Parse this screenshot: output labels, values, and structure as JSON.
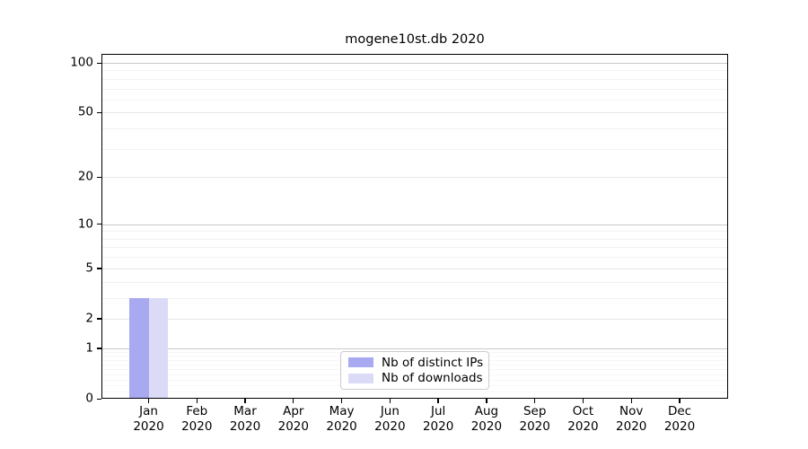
{
  "figure": {
    "title": "mogene10st.db 2020"
  },
  "chart_data": {
    "type": "bar",
    "title": "mogene10st.db 2020",
    "categories": [
      "Jan 2020",
      "Feb 2020",
      "Mar 2020",
      "Apr 2020",
      "May 2020",
      "Jun 2020",
      "Jul 2020",
      "Aug 2020",
      "Sep 2020",
      "Oct 2020",
      "Nov 2020",
      "Dec 2020"
    ],
    "months": [
      "Jan",
      "Feb",
      "Mar",
      "Apr",
      "May",
      "Jun",
      "Jul",
      "Aug",
      "Sep",
      "Oct",
      "Nov",
      "Dec"
    ],
    "year": "2020",
    "series": [
      {
        "name": "Nb of distinct IPs",
        "color": "#a9a9f1",
        "values": [
          3,
          0,
          0,
          0,
          0,
          0,
          0,
          0,
          0,
          0,
          0,
          0
        ]
      },
      {
        "name": "Nb of downloads",
        "color": "#dbdbf8",
        "values": [
          3,
          0,
          0,
          0,
          0,
          0,
          0,
          0,
          0,
          0,
          0,
          0
        ]
      }
    ],
    "xlabel": "",
    "ylabel": "",
    "yscale": "log10(1+y)",
    "yticks": [
      0,
      1,
      2,
      5,
      10,
      20,
      50,
      100
    ],
    "ylim": [
      0,
      114
    ],
    "grid": true,
    "legend": {
      "position": "lower center",
      "entries": [
        "Nb of distinct IPs",
        "Nb of downloads"
      ]
    }
  },
  "colors": {
    "background": "#ffffff",
    "spine": "#000000",
    "grid_power_of_ten": "#c9c9c9",
    "grid_major": "#e7e7e7",
    "grid_minor": "#f2f2f2",
    "grid_minor_sub1": "#f7f7f7",
    "legend_border": "#cccccc",
    "bar_distinct_ips": "#a9a9f1",
    "bar_downloads": "#dbdbf8",
    "text": "#000000"
  }
}
